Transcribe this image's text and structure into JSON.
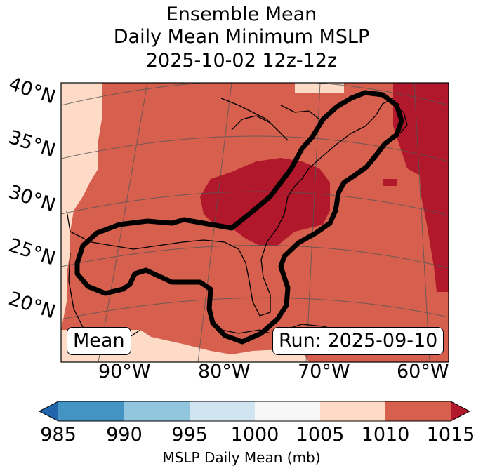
{
  "title": {
    "line1": "Ensemble Mean",
    "line2": "Daily Mean Minimum MSLP",
    "line3": "2025-10-02 12z-12z"
  },
  "map": {
    "lat_labels": [
      "40°N",
      "35°N",
      "30°N",
      "25°N",
      "20°N"
    ],
    "lon_labels": [
      "90°W",
      "80°W",
      "70°W",
      "60°W"
    ],
    "mean_box": "Mean",
    "run_box": "Run: 2025-09-10"
  },
  "colorbar": {
    "ticks": [
      "985",
      "990",
      "995",
      "1000",
      "1005",
      "1010",
      "1015"
    ],
    "label": "MSLP Daily Mean (mb)",
    "colors": [
      "#2166ac",
      "#4393c3",
      "#92c5de",
      "#d1e5f0",
      "#f7f7f7",
      "#fddbc7",
      "#d6604d",
      "#b2182b"
    ]
  },
  "colors": {
    "light": "#fddbc7",
    "mid": "#d6604d",
    "dark": "#b2182b",
    "contour": "#000000"
  }
}
